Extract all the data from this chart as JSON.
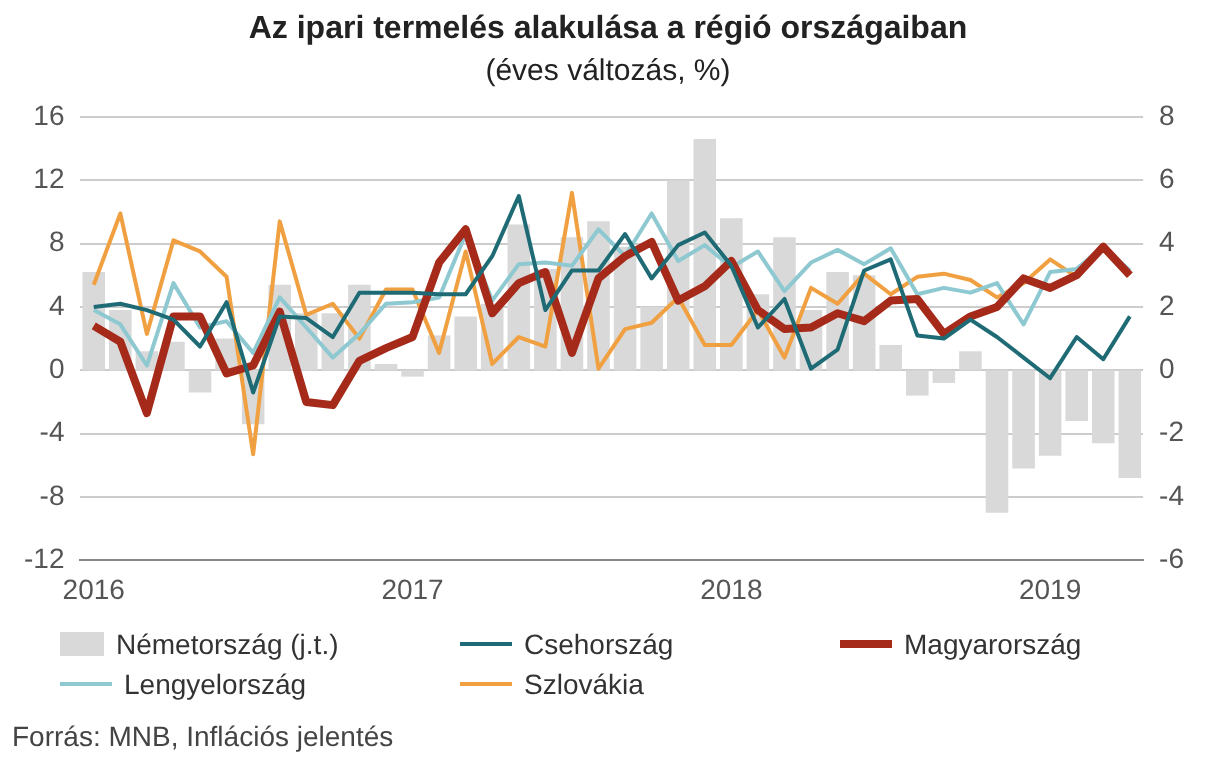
{
  "chart_data": {
    "type": "line",
    "title": "Az ipari termelés alakulása a régió országaiban",
    "subtitle": "(éves változás, %)",
    "categories": [
      "2016",
      null,
      null,
      null,
      null,
      null,
      null,
      null,
      null,
      null,
      null,
      null,
      "2017",
      null,
      null,
      null,
      null,
      null,
      null,
      null,
      null,
      null,
      null,
      null,
      "2018",
      null,
      null,
      null,
      null,
      null,
      null,
      null,
      null,
      null,
      null,
      null,
      "2019",
      null,
      null,
      null
    ],
    "series": [
      {
        "name": "Németország (j.t.)",
        "type": "bar",
        "axis": "y2",
        "color": "#d9d9d9",
        "values": [
          3.1,
          1.9,
          0.6,
          0.9,
          -0.7,
          1.0,
          -1.7,
          2.7,
          1.8,
          1.8,
          2.7,
          0.2,
          -0.2,
          1.1,
          1.7,
          2.1,
          4.6,
          3.2,
          4.2,
          4.7,
          3.9,
          2.0,
          6.0,
          7.3,
          4.8,
          2.4,
          4.2,
          1.9,
          3.1,
          3.0,
          0.8,
          -0.8,
          -0.4,
          0.6,
          -4.5,
          -3.1,
          -2.7,
          -1.6,
          -2.3,
          -3.4
        ]
      },
      {
        "name": "Csehország",
        "color": "#1f6b75",
        "values": [
          4.0,
          4.2,
          3.8,
          3.2,
          1.5,
          4.3,
          -1.4,
          3.4,
          3.3,
          2.1,
          4.9,
          4.9,
          4.9,
          4.8,
          4.8,
          7.2,
          11.0,
          3.8,
          6.3,
          6.3,
          8.6,
          5.8,
          7.9,
          8.7,
          6.6,
          2.7,
          4.5,
          0.1,
          1.3,
          6.3,
          7.0,
          2.2,
          2.0,
          3.2,
          2.1,
          0.8,
          -0.5,
          2.1,
          0.7,
          3.4
        ]
      },
      {
        "name": "Magyarország",
        "color": "#a52a1a",
        "values": [
          2.8,
          1.8,
          -2.7,
          3.4,
          3.4,
          -0.2,
          0.3,
          3.7,
          -2.0,
          -2.2,
          0.6,
          1.4,
          2.1,
          6.8,
          8.9,
          3.6,
          5.5,
          6.2,
          1.1,
          5.8,
          7.2,
          8.1,
          4.4,
          5.3,
          6.9,
          3.8,
          2.6,
          2.7,
          3.6,
          3.1,
          4.4,
          4.5,
          2.3,
          3.4,
          4.0,
          5.8,
          5.2,
          6.0,
          7.8,
          6.0
        ]
      },
      {
        "name": "Lengyelország",
        "color": "#8ec8d0",
        "values": [
          3.8,
          2.9,
          0.3,
          5.5,
          2.7,
          3.1,
          1.1,
          4.6,
          2.7,
          0.8,
          2.3,
          4.2,
          4.3,
          4.6,
          8.6,
          4.4,
          6.7,
          6.8,
          6.6,
          8.9,
          7.2,
          9.9,
          6.9,
          7.9,
          6.5,
          7.5,
          5.0,
          6.8,
          7.6,
          6.7,
          7.7,
          4.8,
          5.2,
          4.9,
          5.5,
          2.9,
          6.2,
          6.4,
          7.8,
          6.3
        ]
      },
      {
        "name": "Szlovákia",
        "color": "#f0a040",
        "values": [
          5.4,
          9.9,
          2.3,
          8.2,
          7.5,
          5.9,
          -5.3,
          9.4,
          3.5,
          4.2,
          2.0,
          5.1,
          5.1,
          1.1,
          7.5,
          0.4,
          2.1,
          1.5,
          11.2,
          0.1,
          2.6,
          3.0,
          4.6,
          1.6,
          1.6,
          3.8,
          0.8,
          5.2,
          4.2,
          6.1,
          4.8,
          5.9,
          6.1,
          5.7,
          4.6,
          5.5,
          7.0,
          5.9,
          7.9,
          6.0
        ]
      }
    ],
    "ylim": [
      -12,
      16
    ],
    "yticks": [
      -12,
      -8,
      -4,
      0,
      4,
      8,
      12,
      16
    ],
    "y2lim": [
      -6,
      8
    ],
    "y2ticks": [
      -6,
      -4,
      -2,
      0,
      2,
      4,
      6,
      8
    ],
    "grid": "y",
    "legend": "bottom",
    "marker": "none",
    "annotations": [
      "Forrás: MNB, Inflációs jelentés"
    ]
  }
}
